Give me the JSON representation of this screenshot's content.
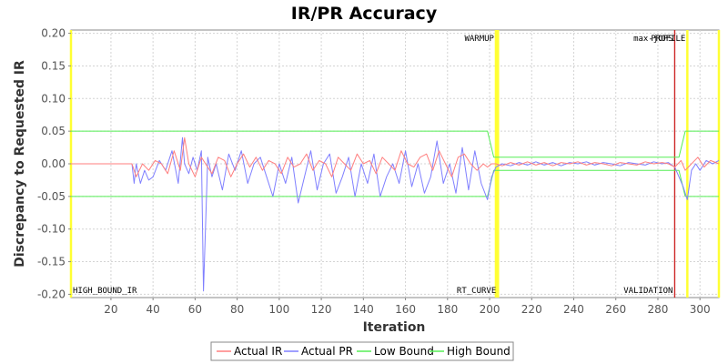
{
  "chart_data": {
    "type": "line",
    "title": "IR/PR Accuracy",
    "xlabel": "Iteration",
    "ylabel": "Discrepancy to Requested IR",
    "xlim": [
      1,
      309
    ],
    "ylim": [
      -0.205,
      0.205
    ],
    "x_ticks": [
      20,
      40,
      60,
      80,
      100,
      120,
      140,
      160,
      180,
      200,
      220,
      240,
      260,
      280,
      300
    ],
    "y_ticks": [
      0.2,
      0.15,
      0.1,
      0.05,
      0.0,
      -0.05,
      -0.1,
      -0.15,
      -0.2
    ],
    "y_tick_labels": [
      "0.20",
      "0.15",
      "0.10",
      "0.05",
      "0.00",
      "-0.05",
      "-0.10",
      "-0.15",
      "-0.20"
    ],
    "grid": true,
    "legend_position": "bottom-center",
    "colors": {
      "actual_ir": "#ff7f7f",
      "actual_pr": "#7f7fff",
      "low_bound": "#55ee55",
      "high_bound": "#55ee55",
      "yellow_marker": "#ffff33",
      "red_marker": "#cc2222",
      "plot_background": "#ffffff",
      "grid": "#d4d4d4"
    },
    "series": [
      {
        "name": "Actual IR",
        "key": "actual_ir",
        "x": [
          1,
          30,
          32,
          35,
          38,
          41,
          44,
          47,
          50,
          53,
          55,
          57,
          60,
          63,
          65,
          68,
          71,
          74,
          77,
          80,
          83,
          86,
          89,
          92,
          95,
          98,
          101,
          104,
          107,
          110,
          113,
          116,
          119,
          122,
          125,
          128,
          131,
          134,
          137,
          140,
          143,
          146,
          149,
          152,
          155,
          158,
          161,
          164,
          167,
          170,
          173,
          176,
          179,
          182,
          185,
          188,
          191,
          194,
          197,
          199,
          201,
          203,
          206,
          210,
          214,
          218,
          222,
          226,
          230,
          234,
          238,
          242,
          246,
          250,
          254,
          258,
          262,
          266,
          270,
          274,
          278,
          282,
          285,
          288,
          291,
          293,
          296,
          299,
          302,
          305,
          309
        ],
        "y": [
          0.0,
          0.0,
          -0.02,
          0.0,
          -0.01,
          0.005,
          0.0,
          -0.015,
          0.02,
          -0.01,
          0.04,
          0.0,
          -0.02,
          0.01,
          0.0,
          -0.015,
          0.01,
          0.005,
          -0.02,
          0.0,
          0.015,
          -0.005,
          0.01,
          -0.01,
          0.005,
          0.0,
          -0.015,
          0.01,
          -0.005,
          0.0,
          0.015,
          -0.01,
          0.005,
          0.0,
          -0.02,
          0.01,
          0.0,
          -0.01,
          0.015,
          0.0,
          0.005,
          -0.015,
          0.01,
          0.0,
          -0.01,
          0.02,
          0.0,
          -0.005,
          0.01,
          0.015,
          -0.01,
          0.02,
          0.0,
          -0.02,
          0.01,
          0.015,
          0.0,
          -0.01,
          0.0,
          -0.005,
          0.0,
          0.0,
          -0.003,
          0.002,
          -0.002,
          0.003,
          -0.002,
          0.002,
          -0.003,
          0.002,
          0.0,
          0.003,
          -0.002,
          0.002,
          0.0,
          -0.003,
          0.002,
          0.0,
          -0.002,
          0.003,
          0.0,
          0.002,
          0.0,
          -0.005,
          0.005,
          -0.01,
          0.0,
          0.01,
          -0.005,
          0.005,
          0.0
        ]
      },
      {
        "name": "Actual PR",
        "key": "actual_pr",
        "x": [
          1,
          30,
          31,
          32,
          34,
          36,
          38,
          40,
          43,
          46,
          49,
          52,
          54,
          55,
          57,
          59,
          61,
          63,
          64,
          66,
          68,
          70,
          73,
          76,
          79,
          82,
          85,
          88,
          91,
          94,
          97,
          100,
          103,
          106,
          109,
          112,
          115,
          118,
          121,
          124,
          127,
          130,
          133,
          136,
          139,
          142,
          145,
          148,
          151,
          154,
          157,
          160,
          163,
          166,
          169,
          172,
          175,
          178,
          181,
          184,
          187,
          190,
          193,
          196,
          199,
          201,
          203,
          206,
          210,
          214,
          218,
          222,
          226,
          230,
          234,
          238,
          242,
          246,
          250,
          254,
          258,
          262,
          266,
          270,
          274,
          278,
          282,
          285,
          288,
          290,
          292,
          294,
          296,
          298,
          300,
          303,
          306,
          309
        ],
        "y": [
          0.0,
          0.0,
          -0.03,
          0.0,
          -0.03,
          -0.01,
          -0.025,
          -0.02,
          0.005,
          -0.01,
          0.02,
          -0.03,
          0.04,
          0.0,
          -0.015,
          0.01,
          -0.01,
          0.02,
          -0.195,
          0.01,
          -0.02,
          0.0,
          -0.04,
          0.015,
          -0.01,
          0.02,
          -0.03,
          0.0,
          0.01,
          -0.02,
          -0.05,
          0.0,
          -0.03,
          0.01,
          -0.06,
          -0.02,
          0.02,
          -0.04,
          0.0,
          0.015,
          -0.045,
          -0.02,
          0.01,
          -0.05,
          0.0,
          -0.03,
          0.015,
          -0.05,
          -0.02,
          0.0,
          -0.03,
          0.02,
          -0.035,
          0.0,
          -0.045,
          -0.02,
          0.035,
          -0.03,
          0.0,
          -0.045,
          0.025,
          -0.04,
          0.02,
          -0.03,
          -0.055,
          -0.02,
          -0.005,
          0.0,
          -0.003,
          0.002,
          -0.002,
          0.003,
          -0.002,
          0.002,
          -0.003,
          0.002,
          0.0,
          0.003,
          -0.002,
          0.002,
          0.0,
          -0.003,
          0.002,
          0.0,
          -0.002,
          0.003,
          0.0,
          0.002,
          -0.005,
          -0.02,
          -0.035,
          -0.055,
          -0.01,
          0.0,
          -0.01,
          0.005,
          0.0,
          0.005
        ]
      },
      {
        "name": "Low Bound",
        "key": "low_bound",
        "x": [
          1,
          199,
          202,
          290,
          293,
          309
        ],
        "y": [
          -0.05,
          -0.05,
          -0.01,
          -0.01,
          -0.05,
          -0.05
        ]
      },
      {
        "name": "High Bound",
        "key": "high_bound",
        "x": [
          1,
          199,
          202,
          290,
          293,
          309
        ],
        "y": [
          0.05,
          0.05,
          0.01,
          0.01,
          0.05,
          0.05
        ]
      }
    ],
    "markers": [
      {
        "label": "HIGH_BOUND_IR",
        "x": 1,
        "color": "yellow",
        "label_position": "bottom"
      },
      {
        "label": "WARMUP",
        "x": 203,
        "color": "yellow",
        "label_position": "top"
      },
      {
        "label": "RT_CURVE",
        "x": 204,
        "color": "yellow",
        "label_position": "bottom"
      },
      {
        "label": "max-jOPS",
        "x": 288,
        "color": "red",
        "label_position": "top"
      },
      {
        "label": "VALIDATION",
        "x": 288,
        "color": "red",
        "label_position": "bottom"
      },
      {
        "label": "PROFILE",
        "x": 294,
        "color": "yellow",
        "label_position": "top"
      },
      {
        "label": "",
        "x": 309,
        "color": "yellow",
        "label_position": "none"
      }
    ]
  }
}
